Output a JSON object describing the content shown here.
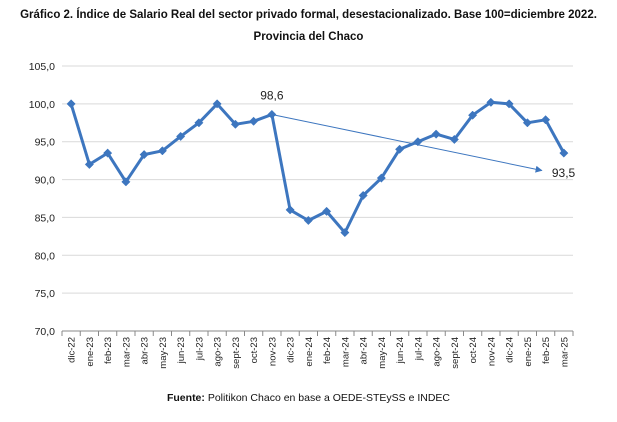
{
  "header": {
    "title": "Gráfico 2. Índice de Salario Real del sector privado formal, desestacionalizado. Base 100=diciembre 2022.",
    "subtitle": "Provincia del Chaco"
  },
  "footer": {
    "source_label": "Fuente:",
    "source_text": "Politikon Chaco en base a OEDE-STEySS e INDEC"
  },
  "colors": {
    "series": "#3d76bf",
    "trend": "#3d76bf",
    "grid": "#d9d9d9",
    "axis": "#888888"
  },
  "chart_data": {
    "type": "line",
    "title": "Gráfico 2. Índice de Salario Real del sector privado formal, desestacionalizado. Base 100=diciembre 2022.",
    "subtitle": "Provincia del Chaco",
    "xlabel": "",
    "ylabel": "",
    "ylim": [
      70,
      105
    ],
    "yticks": [
      "70,0",
      "75,0",
      "80,0",
      "85,0",
      "90,0",
      "95,0",
      "100,0",
      "105,0"
    ],
    "grid": true,
    "legend": "none",
    "categories": [
      "dic-22",
      "ene-23",
      "feb-23",
      "mar-23",
      "abr-23",
      "may-23",
      "jun-23",
      "jul-23",
      "ago-23",
      "sept-23",
      "oct-23",
      "nov-23",
      "dic-23",
      "ene-24",
      "feb-24",
      "mar-24",
      "abr-24",
      "may-24",
      "jun-24",
      "jul-24",
      "ago-24",
      "sept-24",
      "oct-24",
      "nov-24",
      "dic-24",
      "ene-25",
      "feb-25",
      "mar-25"
    ],
    "series": [
      {
        "values": [
          100.0,
          92.0,
          93.5,
          89.7,
          93.3,
          93.8,
          95.7,
          97.5,
          100.0,
          97.3,
          97.7,
          98.6,
          86.0,
          84.6,
          85.8,
          83.0,
          87.9,
          90.2,
          94.0,
          95.0,
          96.0,
          95.3,
          98.5,
          100.2,
          100.0,
          97.5,
          97.9,
          93.5
        ]
      }
    ],
    "trend": {
      "from_category": "nov-23",
      "to_category": "mar-25",
      "from_value": 98.6,
      "to_value": 91.2
    },
    "annotations": [
      {
        "text": "98,6",
        "category": "nov-23",
        "value": 98.6
      },
      {
        "text": "93,5",
        "category": "mar-25",
        "value": 93.5
      }
    ]
  }
}
